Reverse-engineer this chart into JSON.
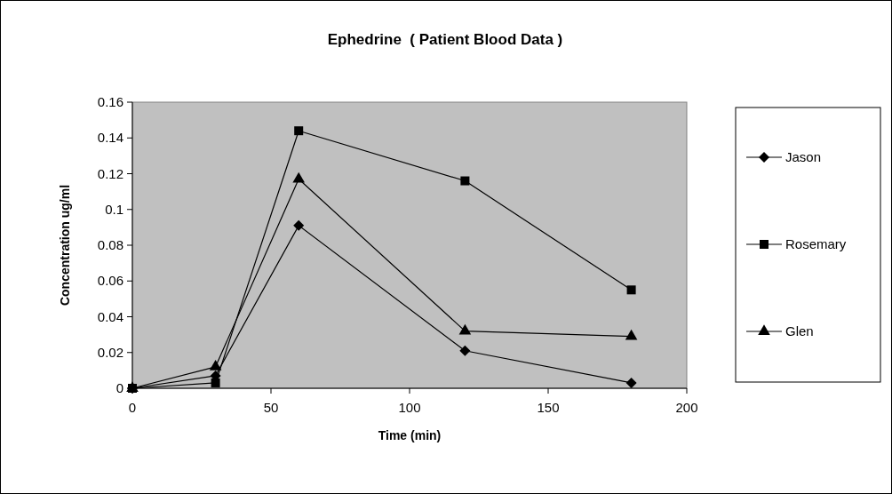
{
  "chart_data": {
    "type": "line",
    "title": "Ephedrine  ( Patient Blood Data )",
    "xlabel": "Time (min)",
    "ylabel": "Concentration ug/ml",
    "x": [
      0,
      30,
      60,
      120,
      180
    ],
    "series": [
      {
        "name": "Jason",
        "color": "#000000",
        "marker": "diamond",
        "values": [
          0,
          0.007,
          0.091,
          0.021,
          0.003
        ]
      },
      {
        "name": "Rosemary",
        "color": "#000000",
        "marker": "square",
        "values": [
          0,
          0.003,
          0.144,
          0.116,
          0.055
        ]
      },
      {
        "name": "Glen",
        "color": "#000000",
        "marker": "triangle",
        "values": [
          0,
          0.012,
          0.117,
          0.032,
          0.029
        ]
      }
    ],
    "xlim": [
      0,
      200
    ],
    "xticks": [
      0,
      50,
      100,
      150,
      200
    ],
    "ylim": [
      0,
      0.16
    ],
    "yticks": [
      0,
      0.02,
      0.04,
      0.06,
      0.08,
      0.1,
      0.12,
      0.14,
      0.16
    ],
    "grid": false,
    "legend": "right"
  }
}
